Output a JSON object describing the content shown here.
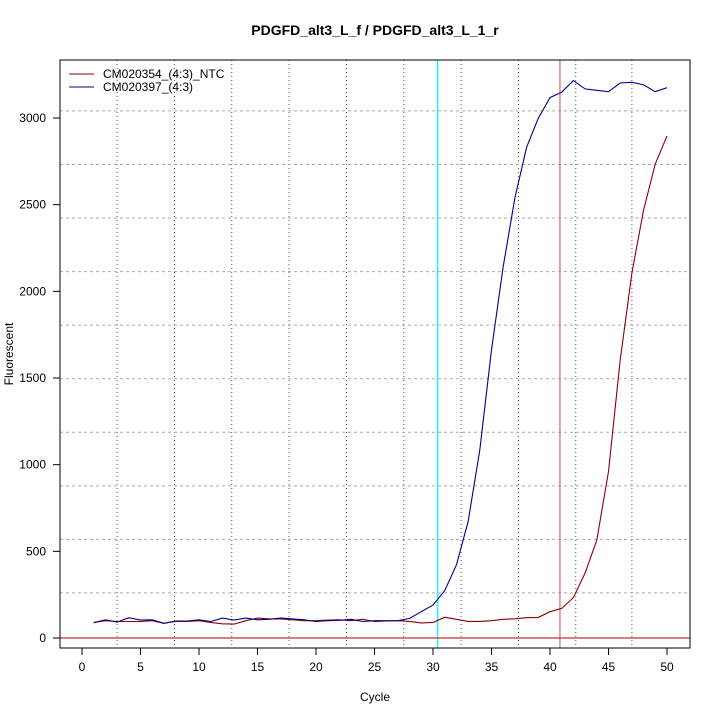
{
  "chart_data": {
    "type": "line",
    "title": "PDGFD_alt3_L_f / PDGFD_alt3_L_1_r",
    "xlabel": "Cycle",
    "ylabel": "Fluorescent",
    "xlim": [
      -2,
      52
    ],
    "ylim": [
      -50,
      3340
    ],
    "x_ticks": [
      0,
      5,
      10,
      15,
      20,
      25,
      30,
      35,
      40,
      45,
      50
    ],
    "y_ticks": [
      0,
      500,
      1000,
      1500,
      2000,
      2500,
      3000
    ],
    "grid": true,
    "grid_x": [
      3.0,
      7.9,
      12.8,
      17.7,
      22.6,
      27.5,
      32.4,
      37.3,
      42.2,
      47.0
    ],
    "grid_y": [
      260,
      569,
      878,
      1187,
      1496,
      1805,
      2114,
      2423,
      2732,
      3041
    ],
    "legend_position": "top-left",
    "threshold_lines": [
      {
        "orientation": "vertical",
        "x": 30.4,
        "color": "#00ffff"
      },
      {
        "orientation": "vertical",
        "x": 40.85,
        "color": "#e07070"
      },
      {
        "orientation": "horizontal",
        "y": 0,
        "color": "#c03030"
      }
    ],
    "x": [
      1,
      2,
      3,
      4,
      5,
      6,
      7,
      8,
      9,
      10,
      11,
      12,
      13,
      14,
      15,
      16,
      17,
      18,
      19,
      20,
      21,
      22,
      23,
      24,
      25,
      26,
      27,
      28,
      29,
      30,
      31,
      32,
      33,
      34,
      35,
      36,
      37,
      38,
      39,
      40,
      41,
      42,
      43,
      44,
      45,
      46,
      47,
      48,
      49,
      50
    ],
    "series": [
      {
        "name": "CM020354_(4:3)_NTC",
        "color": "#8b0000",
        "values": [
          90,
          100,
          95,
          95,
          95,
          100,
          85,
          95,
          95,
          100,
          90,
          82,
          80,
          100,
          115,
          110,
          110,
          105,
          100,
          100,
          103,
          105,
          100,
          108,
          95,
          98,
          100,
          96,
          87,
          90,
          120,
          108,
          96,
          96,
          100,
          108,
          111,
          117,
          119,
          152,
          171,
          233,
          375,
          565,
          960,
          1604,
          2106,
          2470,
          2735,
          2897
        ]
      },
      {
        "name": "CM020397_(4:3)",
        "color": "#00008b",
        "values": [
          88,
          105,
          92,
          117,
          103,
          105,
          85,
          98,
          98,
          105,
          95,
          115,
          103,
          115,
          105,
          108,
          115,
          110,
          105,
          95,
          100,
          102,
          108,
          95,
          100,
          100,
          100,
          113,
          152,
          190,
          273,
          421,
          671,
          1085,
          1662,
          2143,
          2539,
          2831,
          2999,
          3118,
          3149,
          3216,
          3168,
          3160,
          3152,
          3202,
          3206,
          3191,
          3152,
          3175
        ]
      }
    ]
  }
}
